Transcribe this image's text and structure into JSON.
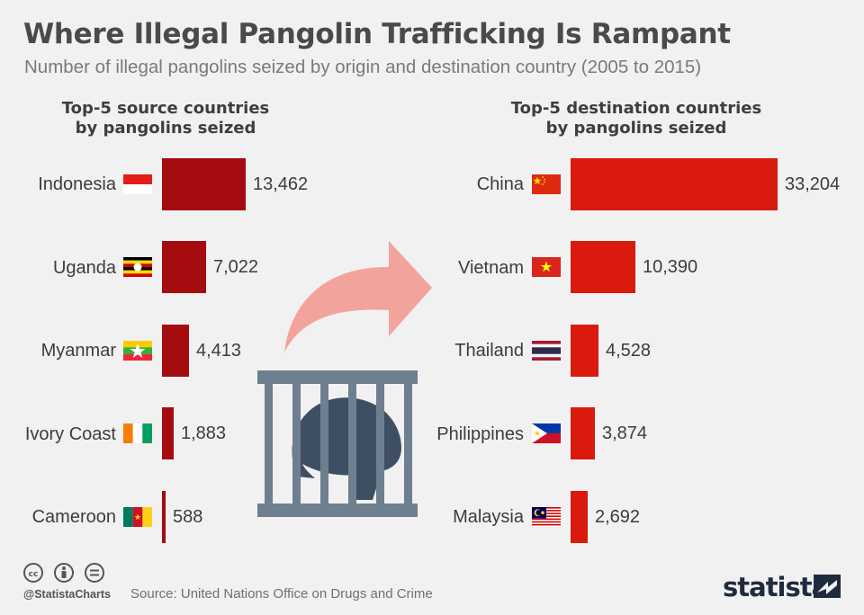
{
  "title": "Where Illegal Pangolin Trafficking Is Rampant",
  "subtitle": "Number of illegal pangolins seized by origin and destination country (2005 to 2015)",
  "footer": {
    "handle": "@StatistaCharts",
    "source": "Source: United Nations Office on Drugs and Crime",
    "brand": "statista",
    "license_icons": [
      "cc-icon",
      "attribution-icon",
      "no-derivatives-icon"
    ]
  },
  "illustration": [
    "arrow-icon",
    "caged-pangolin-icon"
  ],
  "chart_data": [
    {
      "type": "bar",
      "orientation": "horizontal",
      "title_line1": "Top-5 source countries",
      "title_line2": "by pangolins seized",
      "categories": [
        "Indonesia",
        "Uganda",
        "Myanmar",
        "Ivory Coast",
        "Cameroon"
      ],
      "values": [
        13462,
        7022,
        4413,
        1883,
        588
      ],
      "labels": [
        "13,462",
        "7,022",
        "4,413",
        "1,883",
        "588"
      ],
      "flags": [
        "indonesia-flag-icon",
        "uganda-flag-icon",
        "myanmar-flag-icon",
        "ivory-coast-flag-icon",
        "cameroon-flag-icon"
      ],
      "color": "#a50c0f",
      "grid": false
    },
    {
      "type": "bar",
      "orientation": "horizontal",
      "title_line1": "Top-5 destination countries",
      "title_line2": "by pangolins seized",
      "categories": [
        "China",
        "Vietnam",
        "Thailand",
        "Philippines",
        "Malaysia"
      ],
      "values": [
        33204,
        10390,
        4528,
        3874,
        2692
      ],
      "labels": [
        "33,204",
        "10,390",
        "4,528",
        "3,874",
        "2,692"
      ],
      "flags": [
        "china-flag-icon",
        "vietnam-flag-icon",
        "thailand-flag-icon",
        "philippines-flag-icon",
        "malaysia-flag-icon"
      ],
      "color": "#d91a0d",
      "grid": false
    }
  ]
}
